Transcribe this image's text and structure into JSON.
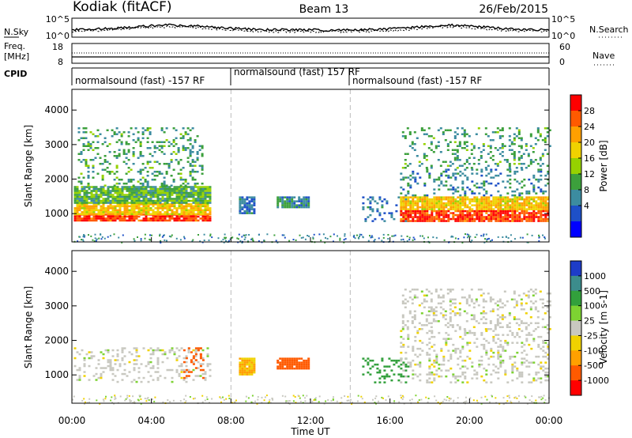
{
  "header": {
    "station": "Kodiak (fitACF)",
    "beam": "Beam 13",
    "date": "26/Feb/2015"
  },
  "sky_panel": {
    "left_label": "N.Sky",
    "right_label": "N.Search",
    "left_ticks": [
      "10^5",
      "10^0"
    ],
    "right_ticks": [
      "10^5",
      "10^0"
    ]
  },
  "freq_panel": {
    "left_label_1": "Freq.",
    "left_label_2": "[MHz]",
    "right_label": "Nave",
    "left_ticks": [
      "18",
      "8"
    ],
    "right_ticks": [
      "60",
      "0"
    ]
  },
  "cpid": {
    "label": "CPID",
    "segments": [
      {
        "label": "normalsound (fast) -157 RF",
        "start": "00:00",
        "end": "08:00"
      },
      {
        "label": "normalsound (fast) 157 RF",
        "start": "08:00",
        "end": "14:00"
      },
      {
        "label": "normalsound (fast) -157 RF",
        "start": "14:00",
        "end": "24:00"
      }
    ]
  },
  "power_colorbar": {
    "label": "Power [dB]",
    "ticks": [
      "28",
      "24",
      "20",
      "16",
      "12",
      "8",
      "4"
    ],
    "colors": [
      "#ff0000",
      "#ff5a00",
      "#ffa000",
      "#f0d200",
      "#96d200",
      "#3ca03c",
      "#3c8ca0",
      "#1e50c8",
      "#0000ff"
    ]
  },
  "velocity_colorbar": {
    "label": "Velocity [m s-1]",
    "ticks": [
      "1000",
      "500",
      "100",
      "25",
      "-25",
      "-100",
      "-500",
      "-1000"
    ],
    "colors": [
      "#1e3cc8",
      "#3c8c8c",
      "#32a03c",
      "#7dd232",
      "#c8c8c0",
      "#f0d200",
      "#ffa000",
      "#ff5a00",
      "#ff0000"
    ]
  },
  "chart_data": {
    "type": "heatmap",
    "xlabel": "Time UT",
    "ylabel": "Slant Range [km]",
    "x_ticks": [
      "00:00",
      "04:00",
      "08:00",
      "12:00",
      "16:00",
      "20:00",
      "00:00"
    ],
    "y_ticks": [
      "4000",
      "3000",
      "2000",
      "1000"
    ],
    "xlim_hours": [
      0,
      24
    ],
    "ylim_km": [
      180,
      4600
    ],
    "dashed_lines_hours": [
      8,
      14
    ],
    "panels": [
      {
        "name": "power",
        "regions": [
          {
            "t": [
              0.1,
              6.9
            ],
            "r": [
              800,
              1000
            ],
            "power_db": 28
          },
          {
            "t": [
              0.1,
              6.9
            ],
            "r": [
              1000,
              1300
            ],
            "power_db": 20
          },
          {
            "t": [
              0.1,
              6.9
            ],
            "r": [
              1300,
              1800
            ],
            "power_db": 12
          },
          {
            "t": [
              0.3,
              6.6
            ],
            "r": [
              1800,
              3500
            ],
            "power_db": 10
          },
          {
            "t": [
              8.4,
              9.2
            ],
            "r": [
              1000,
              1500
            ],
            "power_db": 6
          },
          {
            "t": [
              10.3,
              11.9
            ],
            "r": [
              1200,
              1500
            ],
            "power_db": 8
          },
          {
            "t": [
              14.6,
              16.9
            ],
            "r": [
              800,
              1500
            ],
            "power_db": 6
          },
          {
            "t": [
              16.5,
              24
            ],
            "r": [
              800,
              1100
            ],
            "power_db": 28
          },
          {
            "t": [
              16.5,
              24
            ],
            "r": [
              1100,
              1500
            ],
            "power_db": 20
          },
          {
            "t": [
              16.5,
              24
            ],
            "r": [
              1500,
              2300
            ],
            "power_db": 8
          },
          {
            "t": [
              16.6,
              24
            ],
            "r": [
              2300,
              3500
            ],
            "power_db": 10
          }
        ]
      },
      {
        "name": "velocity",
        "regions": [
          {
            "t": [
              0.1,
              6.9
            ],
            "r": [
              800,
              1800
            ],
            "velocity_ms": 0
          },
          {
            "t": [
              5.6,
              6.6
            ],
            "r": [
              900,
              1800
            ],
            "velocity_ms": -500
          },
          {
            "t": [
              8.4,
              9.2
            ],
            "r": [
              1000,
              1500
            ],
            "velocity_ms": -100
          },
          {
            "t": [
              10.3,
              11.9
            ],
            "r": [
              1200,
              1500
            ],
            "velocity_ms": -500
          },
          {
            "t": [
              14.6,
              16.9
            ],
            "r": [
              800,
              1500
            ],
            "velocity_ms": 100
          },
          {
            "t": [
              16.5,
              24
            ],
            "r": [
              800,
              2300
            ],
            "velocity_ms": 0
          },
          {
            "t": [
              16.6,
              24
            ],
            "r": [
              2300,
              3500
            ],
            "velocity_ms": 0
          }
        ]
      }
    ]
  }
}
